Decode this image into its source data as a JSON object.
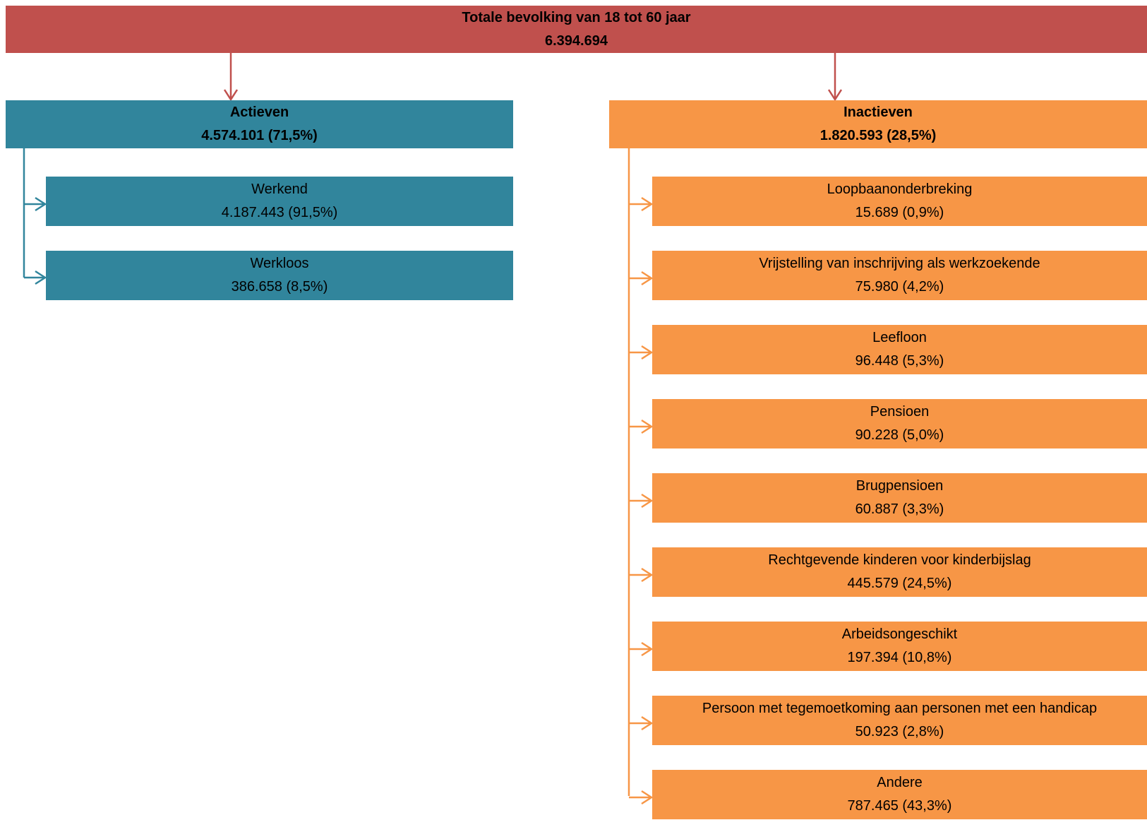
{
  "root": {
    "title": "Totale bevolking van 18 tot 60 jaar",
    "value": "6.394.694"
  },
  "actieven": {
    "title": "Actieven",
    "value": "4.574.101 (71,5%)",
    "children": [
      {
        "label": "Werkend",
        "value": "4.187.443 (91,5%)"
      },
      {
        "label": "Werkloos",
        "value": "386.658 (8,5%)"
      }
    ]
  },
  "inactieven": {
    "title": "Inactieven",
    "value": "1.820.593 (28,5%)",
    "children": [
      {
        "label": "Loopbaanonderbreking",
        "value": "15.689 (0,9%)"
      },
      {
        "label": "Vrijstelling van inschrijving als werkzoekende",
        "value": "75.980 (4,2%)"
      },
      {
        "label": "Leefloon",
        "value": "96.448 (5,3%)"
      },
      {
        "label": "Pensioen",
        "value": "90.228 (5,0%)"
      },
      {
        "label": "Brugpensioen",
        "value": "60.887 (3,3%)"
      },
      {
        "label": "Rechtgevende kinderen voor kinderbijslag",
        "value": "445.579 (24,5%)"
      },
      {
        "label": "Arbeidsongeschikt",
        "value": "197.394 (10,8%)"
      },
      {
        "label": "Persoon met tegemoetkoming aan personen met een handicap",
        "value": "50.923 (2,8%)"
      },
      {
        "label": "Andere",
        "value": "787.465 (43,3%)"
      }
    ]
  },
  "colors": {
    "root": "#c0504d",
    "actieven": "#31859c",
    "inactieven": "#f79646"
  }
}
